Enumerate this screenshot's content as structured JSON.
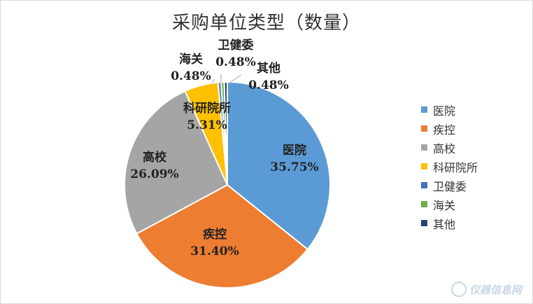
{
  "chart_data": {
    "type": "pie",
    "title": "采购单位类型（数量）",
    "slices": [
      {
        "label": "医院",
        "value": 35.75,
        "display": "35.75%",
        "color": "#5b9bd5"
      },
      {
        "label": "疾控",
        "value": 31.4,
        "display": "31.40%",
        "color": "#ed7d31"
      },
      {
        "label": "高校",
        "value": 26.09,
        "display": "26.09%",
        "color": "#a5a5a5"
      },
      {
        "label": "科研院所",
        "value": 5.31,
        "display": "5.31%",
        "color": "#ffc000"
      },
      {
        "label": "卫健委",
        "value": 0.48,
        "display": "0.48%",
        "color": "#4472c4"
      },
      {
        "label": "海关",
        "value": 0.48,
        "display": "0.48%",
        "color": "#70ad47"
      },
      {
        "label": "其他",
        "value": 0.48,
        "display": "0.48%",
        "color": "#264478"
      }
    ],
    "legend_position": "right"
  },
  "watermark": {
    "text": "仪器信息网"
  }
}
